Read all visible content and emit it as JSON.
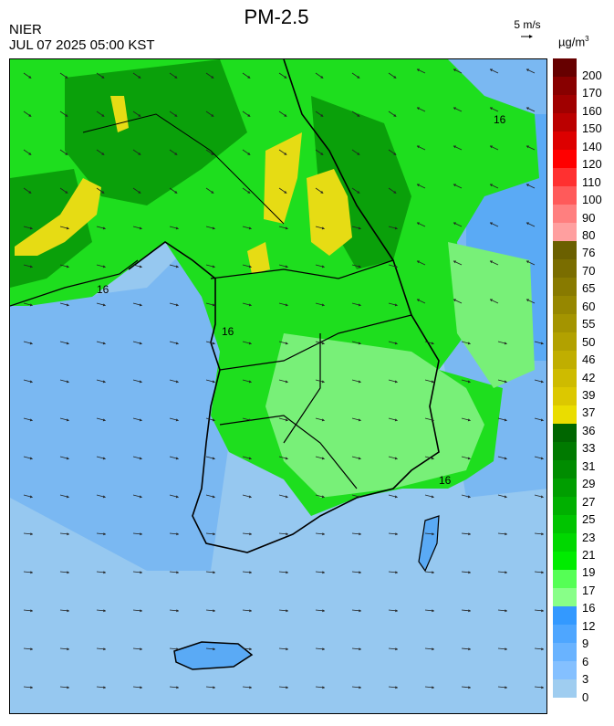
{
  "header": {
    "title": "PM-2.5",
    "agency": "NIER",
    "timestamp": "JUL 07 2025 05:00 KST",
    "wind_reference": "5 m/s",
    "unit_base": "µg/m",
    "unit_exp": "3"
  },
  "contour_label": "16",
  "legend": {
    "labels": [
      "200",
      "170",
      "160",
      "150",
      "140",
      "120",
      "110",
      "100",
      "90",
      "80",
      "76",
      "70",
      "65",
      "60",
      "55",
      "50",
      "46",
      "42",
      "39",
      "37",
      "36",
      "33",
      "31",
      "29",
      "27",
      "25",
      "23",
      "21",
      "19",
      "17",
      "16",
      "12",
      "9",
      "6",
      "3",
      "0"
    ],
    "colors": [
      "#660000",
      "#880000",
      "#a00000",
      "#bb0000",
      "#dd0000",
      "#ff0000",
      "#ff3030",
      "#ff5a5a",
      "#ff7f7f",
      "#ff9f9f",
      "#6b6000",
      "#7a6d00",
      "#887a00",
      "#968700",
      "#a49400",
      "#b2a100",
      "#c0ae00",
      "#cebb00",
      "#dcc800",
      "#eadd00",
      "#006600",
      "#007a00",
      "#008c00",
      "#009e00",
      "#00b000",
      "#00c400",
      "#00d800",
      "#00ec00",
      "#55ff55",
      "#88ff88",
      "#3399ff",
      "#4ea6ff",
      "#69b3ff",
      "#84c0ff",
      "#9fcdf0"
    ]
  },
  "colors": {
    "sea_clean": "#96c8f0",
    "low_blue": "#5aaaf5",
    "mid_blue": "#3c96f0",
    "light_green": "#78f078",
    "green": "#1ede1e",
    "dark_green": "#0aa00a",
    "yellow": "#e6dc14",
    "coast": "#000000"
  }
}
